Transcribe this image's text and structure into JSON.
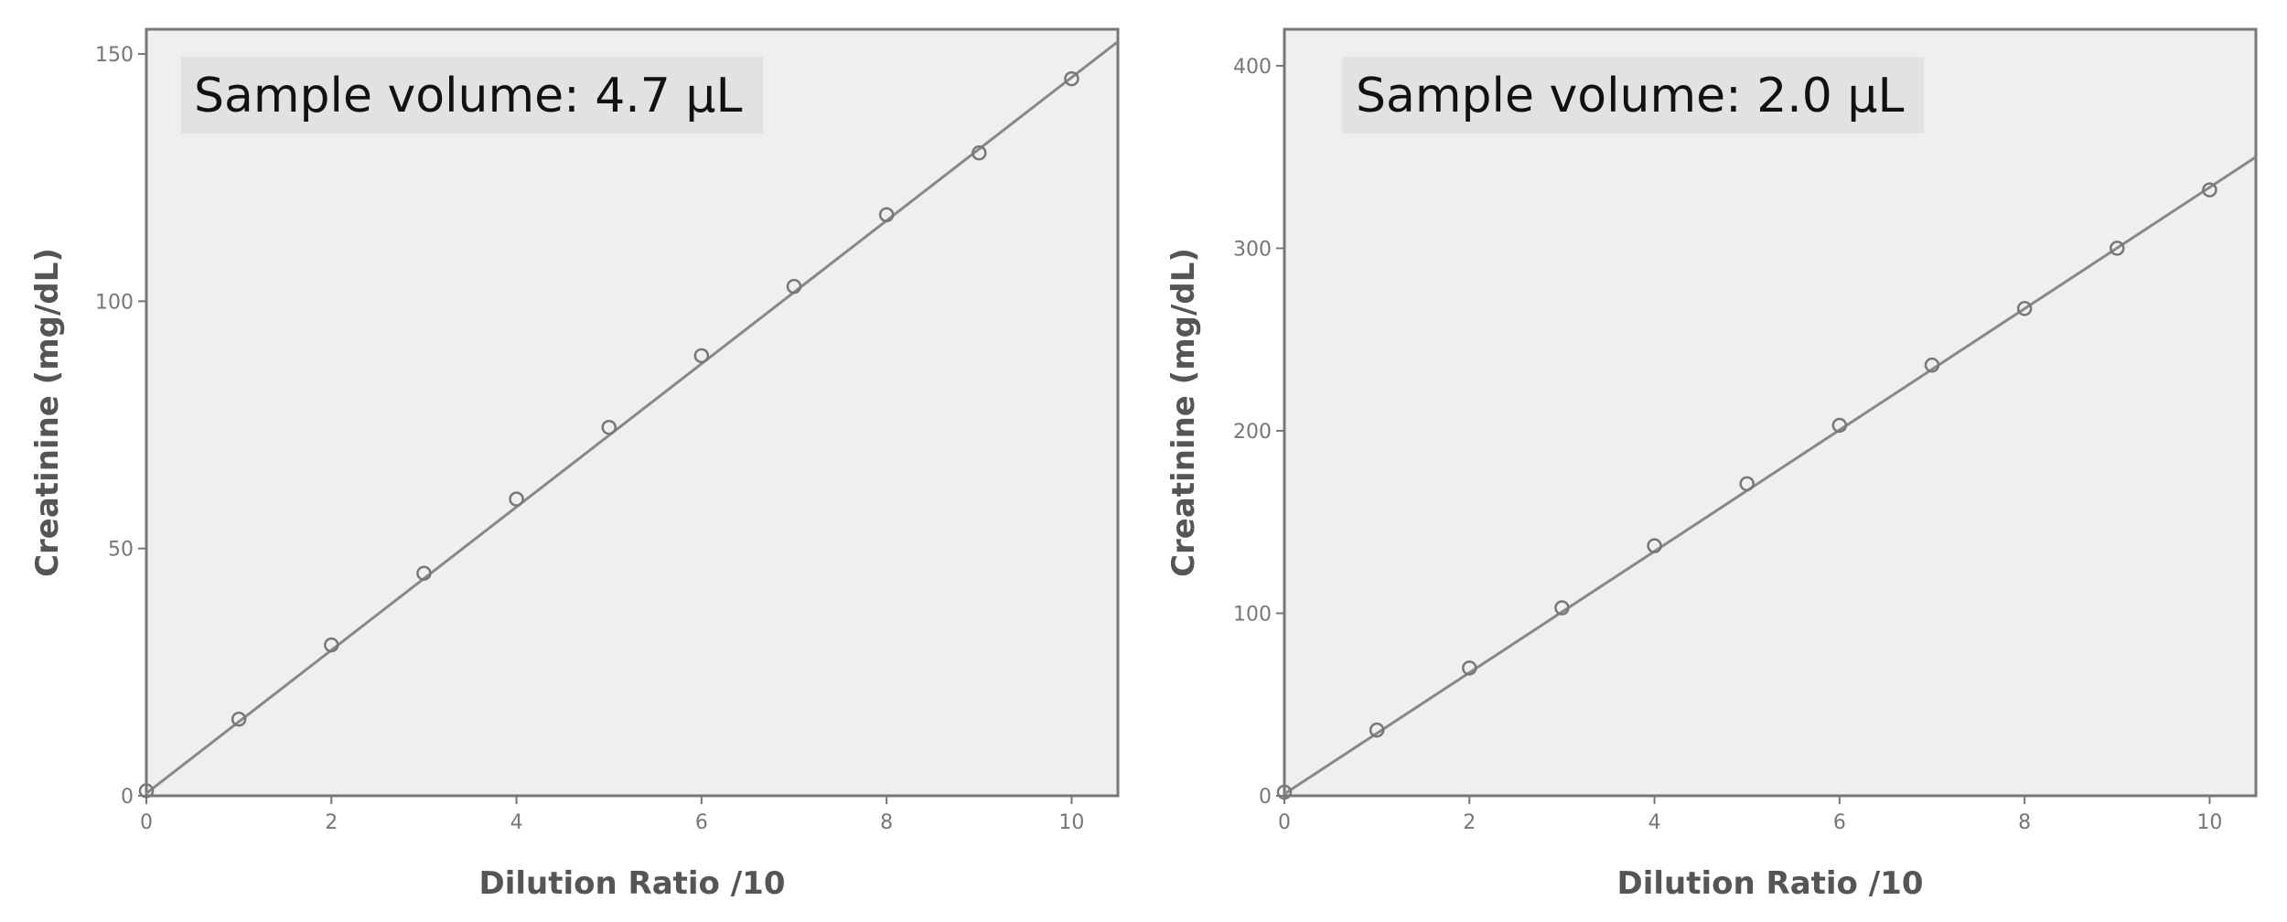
{
  "chart_data": [
    {
      "type": "scatter",
      "annotation": "Sample volume: 4.7 µL",
      "xlabel": "Dilution Ratio /10",
      "ylabel": "Creatinine (mg/dL)",
      "xlim": [
        0,
        10.5
      ],
      "ylim": [
        0,
        155
      ],
      "x_ticks": [
        0,
        2,
        4,
        6,
        8,
        10
      ],
      "y_ticks": [
        0,
        50,
        100,
        150
      ],
      "grid": false,
      "background_color": "#efefef",
      "marker_color": "#777777",
      "line_color": "#888888",
      "series": [
        {
          "x": [
            0,
            1,
            2,
            3,
            4,
            5,
            6,
            7,
            8,
            9,
            10
          ],
          "y": [
            1,
            15.5,
            30.5,
            45,
            60,
            74.5,
            89,
            103,
            117.5,
            130,
            145
          ]
        }
      ],
      "fit_line": {
        "x": [
          0,
          10.5
        ],
        "y": [
          0.5,
          152.5
        ]
      }
    },
    {
      "type": "scatter",
      "annotation": "Sample volume: 2.0 µL",
      "xlabel": "Dilution Ratio /10",
      "ylabel": "Creatinine (mg/dL)",
      "xlim": [
        0,
        10.5
      ],
      "ylim": [
        0,
        420
      ],
      "x_ticks": [
        0,
        2,
        4,
        6,
        8,
        10
      ],
      "y_ticks": [
        0,
        100,
        200,
        300,
        400
      ],
      "grid": false,
      "background_color": "#efefef",
      "marker_color": "#777777",
      "line_color": "#888888",
      "series": [
        {
          "x": [
            0,
            1,
            2,
            3,
            4,
            5,
            6,
            7,
            8,
            9,
            10
          ],
          "y": [
            2,
            36,
            70,
            103,
            137,
            171,
            203,
            236,
            267,
            300,
            332
          ]
        }
      ],
      "fit_line": {
        "x": [
          0,
          10.5
        ],
        "y": [
          1,
          350
        ]
      }
    }
  ]
}
